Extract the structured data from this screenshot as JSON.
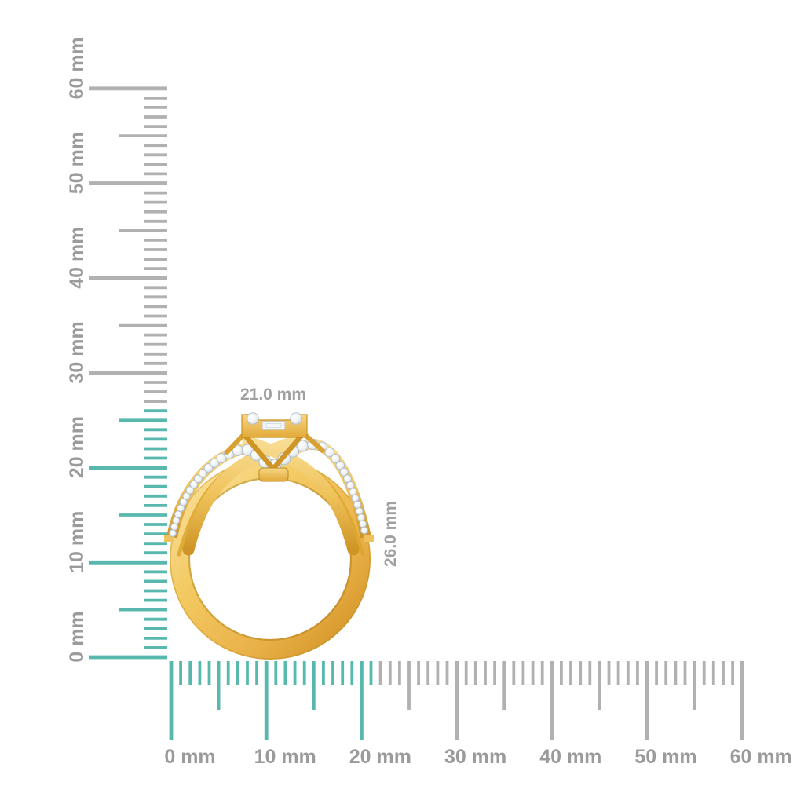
{
  "image": {
    "subject": "gold-diamond-ring-front-view-with-scale-rulers",
    "background": "#ffffff"
  },
  "product": {
    "width_label": "21.0 mm",
    "height_label": "26.0 mm",
    "width_mm": 21.0,
    "height_mm": 26.0
  },
  "rulers": {
    "unit": "mm",
    "min_mm": 0,
    "max_mm": 60,
    "minor_step_mm": 1,
    "medium_step_mm": 5,
    "major_step_mm": 10,
    "label_every_mm": 10,
    "colors": {
      "active": "#59b8ae",
      "inactive": "#b1b1b1",
      "label": "#9b9b9b",
      "dimension_label": "#a0a0a0"
    },
    "vertical": {
      "labels": [
        "0 mm",
        "10 mm",
        "20 mm",
        "30 mm",
        "40 mm",
        "50 mm",
        "60 mm"
      ],
      "active_extent_mm": 26
    },
    "horizontal": {
      "labels": [
        "0 mm",
        "10 mm",
        "20 mm",
        "30 mm",
        "40 mm",
        "50 mm",
        "60 mm"
      ],
      "active_extent_mm": 21
    }
  },
  "ring_colors": {
    "gold_light": "#f9e2a0",
    "gold_mid": "#f0c45c",
    "gold_deep": "#d89c2b",
    "gold_shadow": "#a87a16",
    "stone_white": "#ffffff",
    "stone_shade": "#ccd5dd",
    "stone_edge": "#b3bec9"
  }
}
